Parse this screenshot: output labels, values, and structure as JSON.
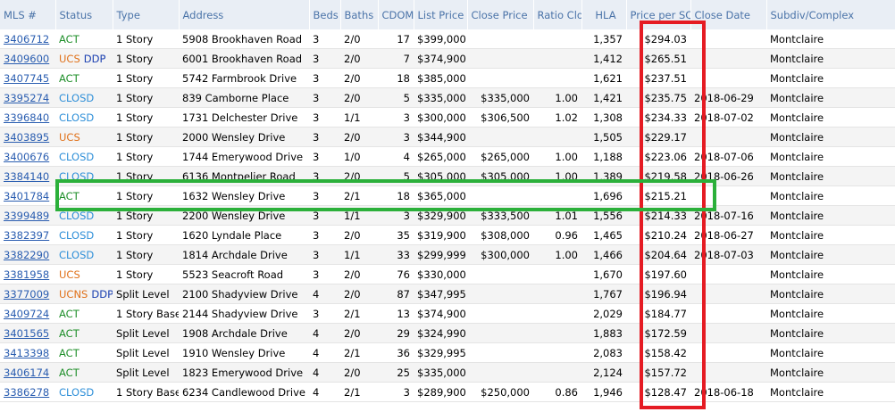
{
  "columns": [
    "MLS #",
    "Status",
    "Type",
    "Address",
    "Beds",
    "Baths",
    "CDOM",
    "List Price",
    "Close Price",
    "Ratio Clo",
    "HLA",
    "Price per SQ",
    "Close Date",
    "Subdiv/Complex"
  ],
  "colors": {
    "red_highlight": "#e51b23",
    "green_highlight": "#2bb03a",
    "act": "#1f8f2a",
    "closd": "#2e8fd8",
    "ucs": "#e0711a",
    "ddp": "#1a3fb0"
  },
  "rows": [
    {
      "mls": "3406712",
      "status": "ACT",
      "status2": "",
      "type": "1 Story",
      "address": "5908 Brookhaven Road",
      "beds": "3",
      "baths": "2/0",
      "cdom": "17",
      "list_price": "$399,000",
      "close_price": "",
      "ratio": "",
      "hla": "1,357",
      "ppsf": "$294.03",
      "close_date": "",
      "subdiv": "Montclaire"
    },
    {
      "mls": "3409600",
      "status": "UCS",
      "status2": "DDP",
      "type": "1 Story",
      "address": "6001 Brookhaven Road",
      "beds": "3",
      "baths": "2/0",
      "cdom": "7",
      "list_price": "$374,900",
      "close_price": "",
      "ratio": "",
      "hla": "1,412",
      "ppsf": "$265.51",
      "close_date": "",
      "subdiv": "Montclaire"
    },
    {
      "mls": "3407745",
      "status": "ACT",
      "status2": "",
      "type": "1 Story",
      "address": "5742 Farmbrook Drive",
      "beds": "3",
      "baths": "2/0",
      "cdom": "18",
      "list_price": "$385,000",
      "close_price": "",
      "ratio": "",
      "hla": "1,621",
      "ppsf": "$237.51",
      "close_date": "",
      "subdiv": "Montclaire"
    },
    {
      "mls": "3395274",
      "status": "CLOSD",
      "status2": "",
      "type": "1 Story",
      "address": "839 Camborne Place",
      "beds": "3",
      "baths": "2/0",
      "cdom": "5",
      "list_price": "$335,000",
      "close_price": "$335,000",
      "ratio": "1.00",
      "hla": "1,421",
      "ppsf": "$235.75",
      "close_date": "2018-06-29",
      "subdiv": "Montclaire"
    },
    {
      "mls": "3396840",
      "status": "CLOSD",
      "status2": "",
      "type": "1 Story",
      "address": "1731 Delchester Drive",
      "beds": "3",
      "baths": "1/1",
      "cdom": "3",
      "list_price": "$300,000",
      "close_price": "$306,500",
      "ratio": "1.02",
      "hla": "1,308",
      "ppsf": "$234.33",
      "close_date": "2018-07-02",
      "subdiv": "Montclaire"
    },
    {
      "mls": "3403895",
      "status": "UCS",
      "status2": "",
      "type": "1 Story",
      "address": "2000 Wensley Drive",
      "beds": "3",
      "baths": "2/0",
      "cdom": "3",
      "list_price": "$344,900",
      "close_price": "",
      "ratio": "",
      "hla": "1,505",
      "ppsf": "$229.17",
      "close_date": "",
      "subdiv": "Montclaire"
    },
    {
      "mls": "3400676",
      "status": "CLOSD",
      "status2": "",
      "type": "1 Story",
      "address": "1744 Emerywood Drive",
      "beds": "3",
      "baths": "1/0",
      "cdom": "4",
      "list_price": "$265,000",
      "close_price": "$265,000",
      "ratio": "1.00",
      "hla": "1,188",
      "ppsf": "$223.06",
      "close_date": "2018-07-06",
      "subdiv": "Montclaire"
    },
    {
      "mls": "3384140",
      "status": "CLOSD",
      "status2": "",
      "type": "1 Story",
      "address": "6136 Montpelier Road",
      "beds": "3",
      "baths": "2/0",
      "cdom": "5",
      "list_price": "$305,000",
      "close_price": "$305,000",
      "ratio": "1.00",
      "hla": "1,389",
      "ppsf": "$219.58",
      "close_date": "2018-06-26",
      "subdiv": "Montclaire"
    },
    {
      "mls": "3401784",
      "status": "ACT",
      "status2": "",
      "type": "1 Story",
      "address": "1632 Wensley Drive",
      "beds": "3",
      "baths": "2/1",
      "cdom": "18",
      "list_price": "$365,000",
      "close_price": "",
      "ratio": "",
      "hla": "1,696",
      "ppsf": "$215.21",
      "close_date": "",
      "subdiv": "Montclaire"
    },
    {
      "mls": "3399489",
      "status": "CLOSD",
      "status2": "",
      "type": "1 Story",
      "address": "2200 Wensley Drive",
      "beds": "3",
      "baths": "1/1",
      "cdom": "3",
      "list_price": "$329,900",
      "close_price": "$333,500",
      "ratio": "1.01",
      "hla": "1,556",
      "ppsf": "$214.33",
      "close_date": "2018-07-16",
      "subdiv": "Montclaire"
    },
    {
      "mls": "3382397",
      "status": "CLOSD",
      "status2": "",
      "type": "1 Story",
      "address": "1620 Lyndale Place",
      "beds": "3",
      "baths": "2/0",
      "cdom": "35",
      "list_price": "$319,900",
      "close_price": "$308,000",
      "ratio": "0.96",
      "hla": "1,465",
      "ppsf": "$210.24",
      "close_date": "2018-06-27",
      "subdiv": "Montclaire"
    },
    {
      "mls": "3382290",
      "status": "CLOSD",
      "status2": "",
      "type": "1 Story",
      "address": "1814 Archdale Drive",
      "beds": "3",
      "baths": "1/1",
      "cdom": "33",
      "list_price": "$299,999",
      "close_price": "$300,000",
      "ratio": "1.00",
      "hla": "1,466",
      "ppsf": "$204.64",
      "close_date": "2018-07-03",
      "subdiv": "Montclaire"
    },
    {
      "mls": "3381958",
      "status": "UCS",
      "status2": "",
      "type": "1 Story",
      "address": "5523 Seacroft Road",
      "beds": "3",
      "baths": "2/0",
      "cdom": "76",
      "list_price": "$330,000",
      "close_price": "",
      "ratio": "",
      "hla": "1,670",
      "ppsf": "$197.60",
      "close_date": "",
      "subdiv": "Montclaire"
    },
    {
      "mls": "3377009",
      "status": "UCNS",
      "status2": "DDP",
      "type": "Split Level",
      "address": "2100 Shadyview Drive",
      "beds": "4",
      "baths": "2/0",
      "cdom": "87",
      "list_price": "$347,995",
      "close_price": "",
      "ratio": "",
      "hla": "1,767",
      "ppsf": "$196.94",
      "close_date": "",
      "subdiv": "Montclaire"
    },
    {
      "mls": "3409724",
      "status": "ACT",
      "status2": "",
      "type": "1 Story Base",
      "address": "2144 Shadyview Drive",
      "beds": "3",
      "baths": "2/1",
      "cdom": "13",
      "list_price": "$374,900",
      "close_price": "",
      "ratio": "",
      "hla": "2,029",
      "ppsf": "$184.77",
      "close_date": "",
      "subdiv": "Montclaire"
    },
    {
      "mls": "3401565",
      "status": "ACT",
      "status2": "",
      "type": "Split Level",
      "address": "1908 Archdale Drive",
      "beds": "4",
      "baths": "2/0",
      "cdom": "29",
      "list_price": "$324,990",
      "close_price": "",
      "ratio": "",
      "hla": "1,883",
      "ppsf": "$172.59",
      "close_date": "",
      "subdiv": "Montclaire"
    },
    {
      "mls": "3413398",
      "status": "ACT",
      "status2": "",
      "type": "Split Level",
      "address": "1910 Wensley Drive",
      "beds": "4",
      "baths": "2/1",
      "cdom": "36",
      "list_price": "$329,995",
      "close_price": "",
      "ratio": "",
      "hla": "2,083",
      "ppsf": "$158.42",
      "close_date": "",
      "subdiv": "Montclaire"
    },
    {
      "mls": "3406174",
      "status": "ACT",
      "status2": "",
      "type": "Split Level",
      "address": "1823 Emerywood Drive",
      "beds": "4",
      "baths": "2/0",
      "cdom": "25",
      "list_price": "$335,000",
      "close_price": "",
      "ratio": "",
      "hla": "2,124",
      "ppsf": "$157.72",
      "close_date": "",
      "subdiv": "Montclaire"
    },
    {
      "mls": "3386278",
      "status": "CLOSD",
      "status2": "",
      "type": "1 Story Base",
      "address": "6234 Candlewood Drive",
      "beds": "4",
      "baths": "2/1",
      "cdom": "3",
      "list_price": "$289,900",
      "close_price": "$250,000",
      "ratio": "0.86",
      "hla": "1,946",
      "ppsf": "$128.47",
      "close_date": "2018-06-18",
      "subdiv": "Montclaire"
    }
  ]
}
